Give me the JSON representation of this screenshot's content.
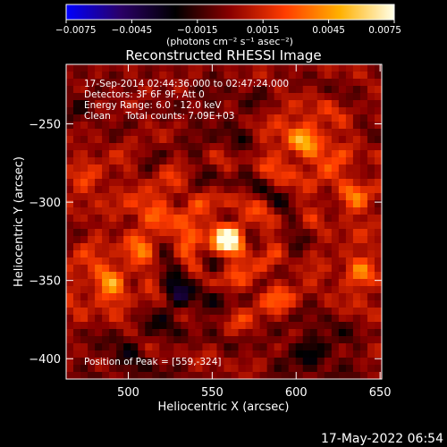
{
  "chart_data": {
    "type": "heatmap",
    "title": "Reconstructed RHESSI Image",
    "xlabel": "Heliocentric X (arcsec)",
    "ylabel": "Heliocentric Y (arcsec)",
    "xlim": [
      463,
      651
    ],
    "ylim": [
      -413,
      -212
    ],
    "x_ticks": [
      500,
      550,
      600,
      650
    ],
    "y_ticks": [
      -250,
      -300,
      -350,
      -400
    ],
    "colorbar": {
      "range": [
        -0.0075,
        0.0075
      ],
      "ticks": [
        "−0.0075",
        "−0.0045",
        "−0.0015",
        "0.0015",
        "0.0045",
        "0.0075"
      ],
      "unit_label": "(photons cm⁻² s⁻¹ asec⁻²)",
      "colors": [
        "#0000ff",
        "#2a0066",
        "#000000",
        "#8a0000",
        "#ff3c00",
        "#ffb000",
        "#ffffe8"
      ]
    },
    "annotations": [
      "17-Sep-2014 02:44:36.000 to 02:47:24.000",
      "Detectors: 3F 6F 9F, Att 0",
      "Energy Range: 6.0 - 12.0 keV",
      "Clean     Total counts: 7.09E+03"
    ],
    "peak_label": "Position of Peak = [559,-324]",
    "sources": [
      {
        "x": 559,
        "y": -324,
        "amp": 0.0078,
        "width": 9
      },
      {
        "x": 520,
        "y": -310,
        "amp": 0.003,
        "width": 14
      },
      {
        "x": 605,
        "y": -262,
        "amp": 0.0042,
        "width": 13
      },
      {
        "x": 635,
        "y": -295,
        "amp": 0.0026,
        "width": 12
      },
      {
        "x": 490,
        "y": -350,
        "amp": 0.0034,
        "width": 14
      },
      {
        "x": 475,
        "y": -285,
        "amp": 0.0018,
        "width": 12
      },
      {
        "x": 640,
        "y": -345,
        "amp": 0.0028,
        "width": 12
      },
      {
        "x": 585,
        "y": -360,
        "amp": 0.0022,
        "width": 12
      },
      {
        "x": 530,
        "y": -360,
        "amp": -0.0026,
        "width": 12
      },
      {
        "x": 610,
        "y": -395,
        "amp": -0.0022,
        "width": 14
      },
      {
        "x": 555,
        "y": -245,
        "amp": -0.001,
        "width": 16
      },
      {
        "x": 500,
        "y": -400,
        "amp": -0.0016,
        "width": 14
      },
      {
        "x": 470,
        "y": -240,
        "amp": -0.0012,
        "width": 10
      }
    ]
  },
  "footer": {
    "timestamp": "17-May-2022 06:54"
  }
}
